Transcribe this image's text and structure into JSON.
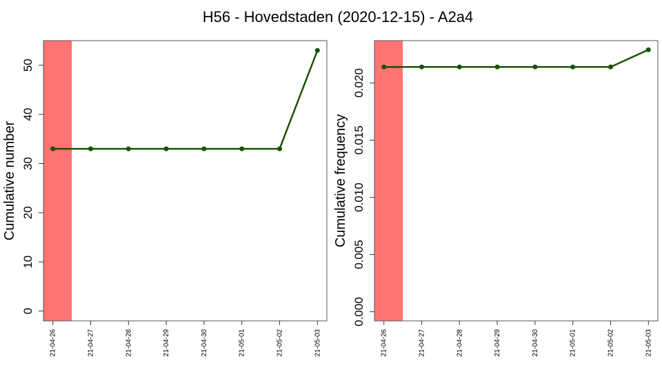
{
  "title": "H56 - Hovedstaden (2020-12-15) - A2a4",
  "colors": {
    "line": "#1a5200",
    "highlight": "#ff7373",
    "frame": "#555555"
  },
  "chart_data": [
    {
      "type": "line",
      "ylabel": "Cumulative number",
      "x": [
        "21-04-26",
        "21-04-27",
        "21-04-28",
        "21-04-29",
        "21-04-30",
        "21-05-01",
        "21-05-02",
        "21-05-03"
      ],
      "series": [
        {
          "values": [
            33,
            33,
            33,
            33,
            33,
            33,
            33,
            53
          ]
        }
      ],
      "yticks": [
        "0",
        "10",
        "20",
        "30",
        "40",
        "50"
      ],
      "ylim": [
        -2,
        55
      ],
      "highlight_band": [
        "21-04-26",
        "21-04-26"
      ],
      "grid": false
    },
    {
      "type": "line",
      "ylabel": "Cumulative frequency",
      "x": [
        "21-04-26",
        "21-04-27",
        "21-04-28",
        "21-04-29",
        "21-04-30",
        "21-05-01",
        "21-05-02",
        "21-05-03"
      ],
      "series": [
        {
          "values": [
            0.0214,
            0.0214,
            0.0214,
            0.0214,
            0.0214,
            0.0214,
            0.0214,
            0.0229
          ]
        }
      ],
      "yticks": [
        "0.000",
        "0.005",
        "0.010",
        "0.015",
        "0.020"
      ],
      "ylim": [
        -0.0008,
        0.0237
      ],
      "highlight_band": [
        "21-04-26",
        "21-04-26"
      ],
      "grid": false
    }
  ]
}
